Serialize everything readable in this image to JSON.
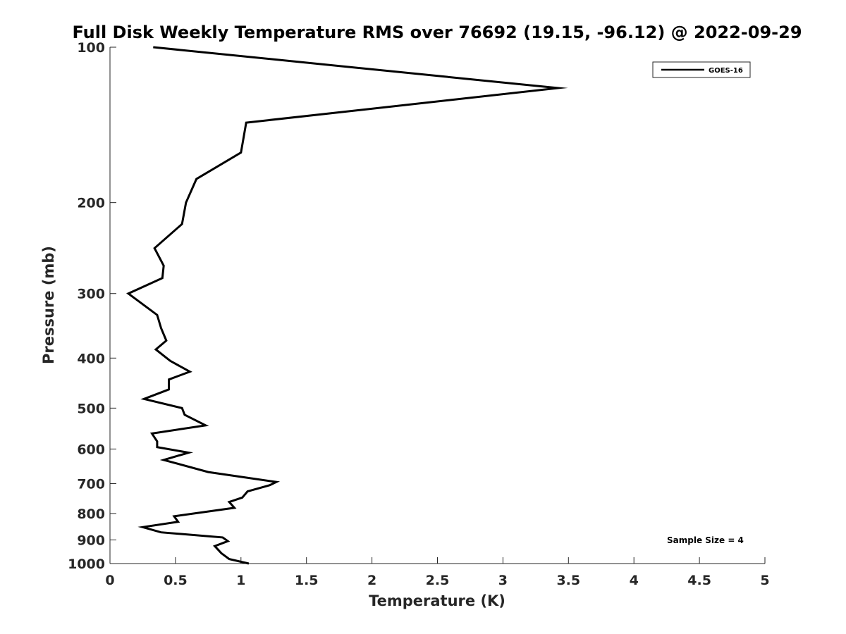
{
  "chart_data": {
    "type": "line",
    "title": "Full Disk Weekly Temperature RMS over 76692 (19.15, -96.12) @ 2022-09-29",
    "xlabel": "Temperature (K)",
    "ylabel": "Pressure (mb)",
    "xlim": [
      0,
      5
    ],
    "ylim": [
      1000,
      100
    ],
    "yscale": "log",
    "y_reversed": true,
    "grid": false,
    "legend_position": "top-right",
    "xticks": [
      0,
      0.5,
      1,
      1.5,
      2,
      2.5,
      3,
      3.5,
      4,
      4.5,
      5
    ],
    "xtick_labels": [
      "0",
      "0.5",
      "1",
      "1.5",
      "2",
      "2.5",
      "3",
      "3.5",
      "4",
      "4.5",
      "5"
    ],
    "yticks": [
      100,
      200,
      300,
      400,
      500,
      600,
      700,
      800,
      900,
      1000
    ],
    "ytick_labels": [
      "100",
      "200",
      "300",
      "400",
      "500",
      "600",
      "700",
      "800",
      "900",
      "1000"
    ],
    "series": [
      {
        "name": "GOES-16",
        "color": "#000000",
        "points": [
          [
            0.33,
            100
          ],
          [
            3.42,
            120
          ],
          [
            1.04,
            140
          ],
          [
            1.0,
            160
          ],
          [
            0.66,
            180
          ],
          [
            0.58,
            200
          ],
          [
            0.55,
            220
          ],
          [
            0.34,
            245
          ],
          [
            0.41,
            265
          ],
          [
            0.4,
            280
          ],
          [
            0.14,
            300
          ],
          [
            0.36,
            330
          ],
          [
            0.39,
            350
          ],
          [
            0.43,
            370
          ],
          [
            0.35,
            385
          ],
          [
            0.46,
            405
          ],
          [
            0.61,
            425
          ],
          [
            0.45,
            440
          ],
          [
            0.45,
            460
          ],
          [
            0.26,
            480
          ],
          [
            0.55,
            500
          ],
          [
            0.57,
            515
          ],
          [
            0.73,
            540
          ],
          [
            0.32,
            560
          ],
          [
            0.36,
            580
          ],
          [
            0.36,
            595
          ],
          [
            0.6,
            610
          ],
          [
            0.41,
            630
          ],
          [
            0.75,
            665
          ],
          [
            1.27,
            695
          ],
          [
            1.22,
            705
          ],
          [
            1.05,
            725
          ],
          [
            1.01,
            745
          ],
          [
            0.91,
            760
          ],
          [
            0.95,
            780
          ],
          [
            0.49,
            810
          ],
          [
            0.52,
            830
          ],
          [
            0.25,
            850
          ],
          [
            0.39,
            870
          ],
          [
            0.86,
            890
          ],
          [
            0.9,
            905
          ],
          [
            0.8,
            925
          ],
          [
            0.85,
            955
          ],
          [
            0.91,
            980
          ],
          [
            1.06,
            1000
          ]
        ]
      }
    ],
    "annotations": [
      "Sample Size = 4"
    ]
  }
}
